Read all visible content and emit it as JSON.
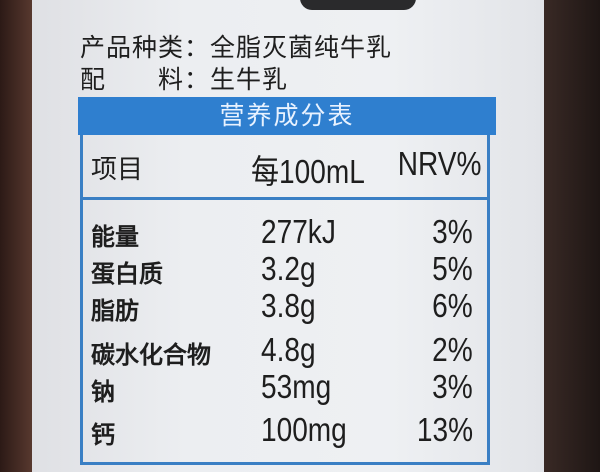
{
  "product_type": {
    "label": "产品种类：",
    "value": "全脂灭菌纯牛乳"
  },
  "ingredients": {
    "label": "配　　料：",
    "value": "生牛乳"
  },
  "table": {
    "title": "营养成分表",
    "headers": [
      "项目",
      "每100mL",
      "NRV%"
    ],
    "rows": [
      {
        "item": "能量",
        "amount": "277kJ",
        "nrv": "3%"
      },
      {
        "item": "蛋白质",
        "amount": "3.2g",
        "nrv": "5%"
      },
      {
        "item": "脂肪",
        "amount": "3.8g",
        "nrv": "6%"
      },
      {
        "item": "碳水化合物",
        "amount": "4.8g",
        "nrv": "2%"
      },
      {
        "item": "钠",
        "amount": "53mg",
        "nrv": "3%"
      },
      {
        "item": "钙",
        "amount": "100mg",
        "nrv": "13%"
      }
    ]
  },
  "colors": {
    "table_blue": "#2f7fcf"
  }
}
